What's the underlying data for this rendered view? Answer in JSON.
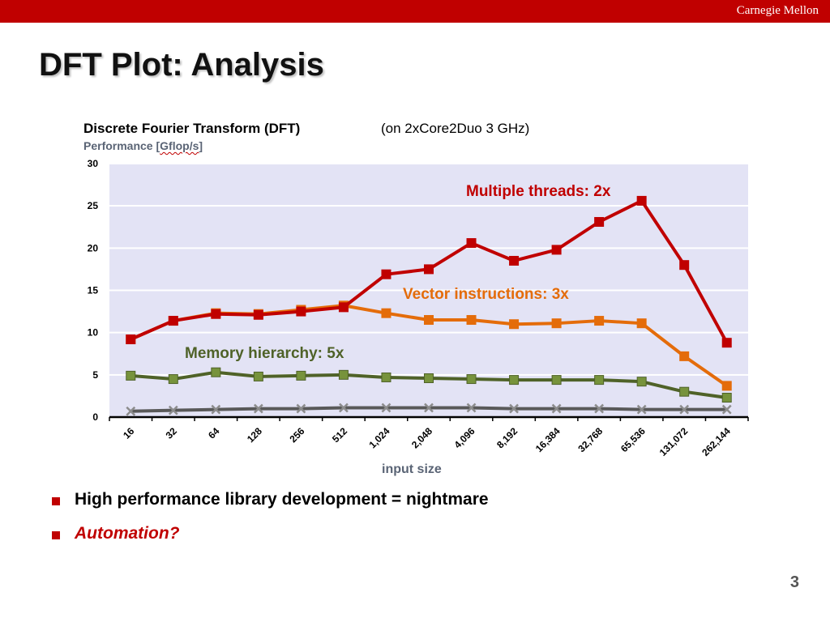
{
  "header": {
    "institution": "Carnegie Mellon"
  },
  "slide": {
    "title": "DFT Plot: Analysis",
    "bullets": [
      {
        "text": "High performance library development = nightmare"
      },
      {
        "text": "Automation?"
      }
    ],
    "page_number": "3"
  },
  "chart_data": {
    "type": "line",
    "title": "Discrete Fourier Transform (DFT)",
    "subtitle": "(on 2xCore2Duo 3 GHz)",
    "ylabel_prefix": "Performance [",
    "ylabel_unit": "Gflop/s",
    "ylabel_suffix": "]",
    "xlabel": "input size",
    "categories": [
      "16",
      "32",
      "64",
      "128",
      "256",
      "512",
      "1,024",
      "2,048",
      "4,096",
      "8,192",
      "16,384",
      "32,768",
      "65,536",
      "131,072",
      "262,144"
    ],
    "ylim": [
      0,
      30
    ],
    "yticks": [
      0,
      5,
      10,
      15,
      20,
      25,
      30
    ],
    "grid": true,
    "plot_background": "#e3e3f5",
    "series": [
      {
        "color": "#c00000",
        "marker": "square",
        "values": [
          9.2,
          11.4,
          12.2,
          12.1,
          12.5,
          13.0,
          16.9,
          17.5,
          20.6,
          18.5,
          19.8,
          23.1,
          25.6,
          18.0,
          8.8
        ]
      },
      {
        "color": "#e46c0a",
        "marker": "square",
        "values": [
          9.2,
          11.4,
          12.3,
          12.2,
          12.7,
          13.2,
          12.3,
          11.5,
          11.5,
          11.0,
          11.1,
          11.4,
          11.1,
          7.2,
          3.7
        ]
      },
      {
        "color": "#4f6228",
        "marker_fill": "#77933c",
        "marker": "square",
        "values": [
          4.9,
          4.5,
          5.3,
          4.8,
          4.9,
          5.0,
          4.7,
          4.6,
          4.5,
          4.4,
          4.4,
          4.4,
          4.2,
          3.0,
          2.3
        ]
      },
      {
        "color": "#595959",
        "marker_fill": "#8c8c8c",
        "marker": "x",
        "values": [
          0.7,
          0.8,
          0.9,
          1.0,
          1.0,
          1.1,
          1.1,
          1.1,
          1.1,
          1.0,
          1.0,
          1.0,
          0.9,
          0.9,
          0.9
        ]
      }
    ],
    "annotations": [
      {
        "text": "Multiple threads: 2x",
        "color": "#c00000"
      },
      {
        "text": "Vector instructions: 3x",
        "color": "#e46c0a"
      },
      {
        "text": "Memory hierarchy: 5x",
        "color": "#4f6228"
      }
    ]
  }
}
